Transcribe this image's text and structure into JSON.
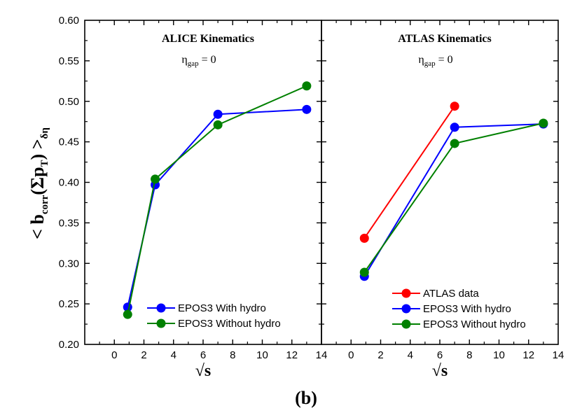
{
  "figure_label": "(b)",
  "colors": {
    "red": "#ff0000",
    "blue": "#0000ff",
    "green": "#008000",
    "axis": "#000000"
  },
  "chart_data": [
    {
      "type": "line",
      "panel": "left",
      "title": "ALICE Kinematics",
      "subtitle": {
        "eta": "η",
        "sub": "gap",
        "rest": " = 0"
      },
      "ylabel": {
        "pre": "< b",
        "sub1": "corr",
        "mid1": "(Σp",
        "sub2": "T",
        "mid2": ") >",
        "sub3": "δη"
      },
      "xlabel": "√s",
      "xlim": [
        -2,
        14
      ],
      "ylim": [
        0.2,
        0.6
      ],
      "xticks": [
        "0",
        "2",
        "4",
        "6",
        "8",
        "10",
        "12",
        "14"
      ],
      "yticks": [
        "0.20",
        "0.25",
        "0.30",
        "0.35",
        "0.40",
        "0.45",
        "0.50",
        "0.55",
        "0.60"
      ],
      "legend_position": "bottom-right",
      "series": [
        {
          "name": "EPOS3 With hydro",
          "color": "#0000ff",
          "x": [
            0.9,
            2.76,
            7,
            13
          ],
          "y": [
            0.246,
            0.397,
            0.484,
            0.49
          ]
        },
        {
          "name": "EPOS3 Without hydro",
          "color": "#008000",
          "x": [
            0.9,
            2.76,
            7,
            13
          ],
          "y": [
            0.237,
            0.404,
            0.471,
            0.519
          ]
        }
      ]
    },
    {
      "type": "line",
      "panel": "right",
      "title": "ATLAS Kinematics",
      "subtitle": {
        "eta": "η",
        "sub": "gap",
        "rest": " = 0"
      },
      "xlabel": "√s",
      "xlim": [
        -2,
        14
      ],
      "ylim": [
        0.2,
        0.6
      ],
      "xticks": [
        "0",
        "2",
        "4",
        "6",
        "8",
        "10",
        "12",
        "14"
      ],
      "legend_position": "bottom-right",
      "series": [
        {
          "name": "ATLAS data",
          "color": "#ff0000",
          "x": [
            0.9,
            7
          ],
          "y": [
            0.331,
            0.494
          ]
        },
        {
          "name": "EPOS3 With hydro",
          "color": "#0000ff",
          "x": [
            0.9,
            7,
            13
          ],
          "y": [
            0.284,
            0.468,
            0.472
          ]
        },
        {
          "name": "EPOS3 Without hydro",
          "color": "#008000",
          "x": [
            0.9,
            7,
            13
          ],
          "y": [
            0.289,
            0.448,
            0.473
          ]
        }
      ]
    }
  ]
}
